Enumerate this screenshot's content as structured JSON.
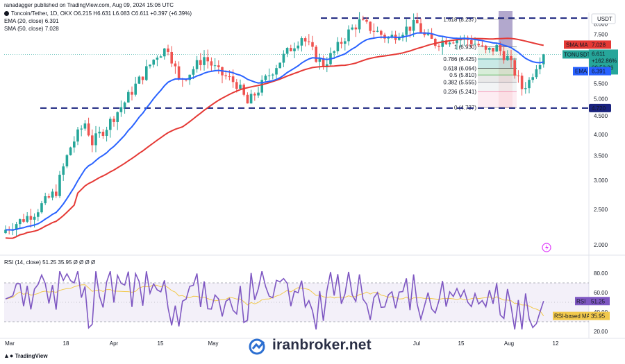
{
  "header": {
    "publisher": "ranadagger published on TradingView.com, Aug 09, 2024 15:06 UTC",
    "symbol_line": "Toncoin/Tether, 1D, OKX  O6.215  H6.631  L6.083  C6.611  +0.397 (+6.39%)",
    "ema_line": "EMA (20, close)  6.391",
    "sma_line": "SMA (50, close)  7.028",
    "rsi_line": "RSI (14, close)  51.25  35.95  Ø  Ø  Ø  Ø"
  },
  "colors": {
    "up": "#26a69a",
    "down": "#ef5350",
    "ema": "#2962ff",
    "sma": "#e53935",
    "rsi": "#7e57c2",
    "rsi_ma": "#f2c94c",
    "level_line": "#1a237e"
  },
  "footer": {
    "tradingview": "TradingView",
    "watermark": "iranbroker.net"
  },
  "chart_data": [
    {
      "type": "candlestick",
      "title": "Toncoin/Tether, 1D, OKX",
      "y_axis_label": "USDT",
      "y_ticks": [
        "2.000",
        "2.500",
        "3.000",
        "3.500",
        "4.000",
        "4.500",
        "5.000",
        "5.500",
        "6.000",
        "6.500",
        "7.000",
        "7.500",
        "8.000"
      ],
      "x_ticks": [
        "Mar",
        "18",
        "Apr",
        "15",
        "May",
        "Jul",
        "15",
        "Aug",
        "12"
      ],
      "scale": "log",
      "ylim": [
        1.9,
        8.6
      ],
      "ohlc_summary": {
        "open": 6.215,
        "high": 6.631,
        "low": 6.083,
        "close": 6.611,
        "change": 0.397,
        "change_pct": 6.39
      },
      "price_badge": {
        "symbol": "TONUSDT",
        "value": "6.611",
        "change": "+162.86%",
        "countdown": "08:53:36"
      },
      "indicators": [
        {
          "name": "EMA (20, close)",
          "value": 6.391,
          "badge": "EMA",
          "badge_value": "6.391"
        },
        {
          "name": "SMA (50, close)",
          "value": 7.028,
          "badge": "SMA:MA",
          "badge_value": "7.028"
        }
      ],
      "horizontal_levels": [
        {
          "value": 8.3,
          "style": "dashed"
        },
        {
          "value": 4.72,
          "style": "dashed",
          "label": "4.720"
        }
      ],
      "fibonacci": [
        {
          "ratio": "1.618",
          "label": "1.618 (8.237)"
        },
        {
          "ratio": "1",
          "label": "1 (6.930)"
        },
        {
          "ratio": "0.786",
          "label": "0.786 (6.425)"
        },
        {
          "ratio": "0.618",
          "label": "0.618 (6.064)"
        },
        {
          "ratio": "0.5",
          "label": "0.5 (5.810)"
        },
        {
          "ratio": "0.382",
          "label": "0.382 (5.555)"
        },
        {
          "ratio": "0.236",
          "label": "0.236 (5.241)"
        },
        {
          "ratio": "0",
          "label": "0 (4.737)"
        }
      ]
    },
    {
      "type": "line",
      "title": "RSI (14, close)",
      "y_ticks": [
        "20.00",
        "40.00",
        "60.00",
        "80.00"
      ],
      "ylim": [
        15,
        90
      ],
      "bands": [
        30,
        70
      ],
      "series": [
        {
          "name": "RSI",
          "value_label": "RSI",
          "current": "51.25"
        },
        {
          "name": "RSI-based MA",
          "value_label": "RSI-based MA",
          "current": "35.95"
        }
      ]
    }
  ]
}
